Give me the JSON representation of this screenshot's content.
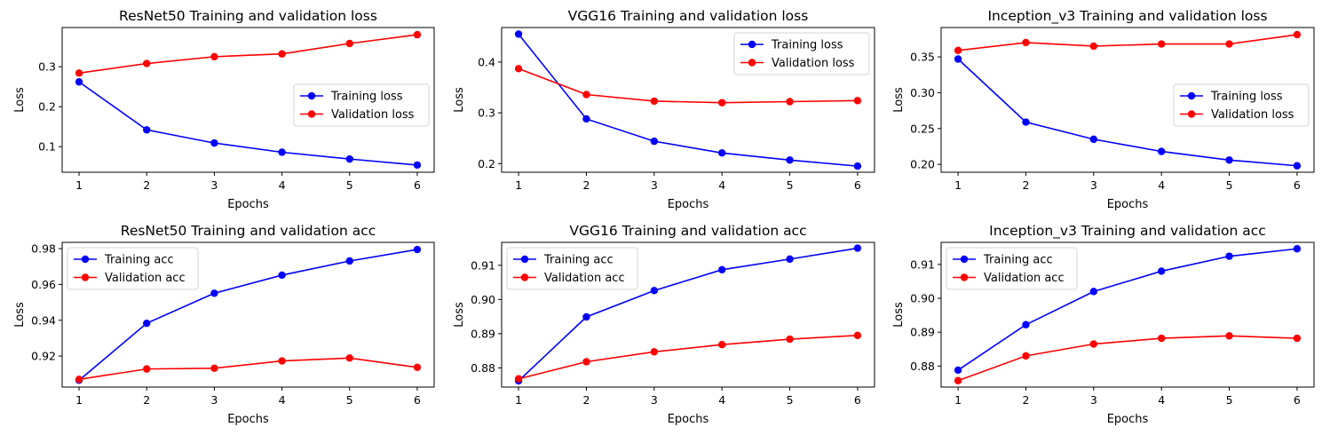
{
  "figure": {
    "colors": {
      "training": "#0000ff",
      "validation": "#ff0000",
      "axes": "#000000",
      "legend_border": "#d6d6d6"
    }
  },
  "chart_data": [
    {
      "type": "line",
      "title": "ResNet50 Training and validation loss",
      "xlabel": "Epochs",
      "ylabel": "Loss",
      "x": [
        1,
        2,
        3,
        4,
        5,
        6
      ],
      "xticks": [
        "1",
        "2",
        "3",
        "4",
        "5",
        "6"
      ],
      "xlim": [
        0.75,
        6.25
      ],
      "ylim": [
        0.036,
        0.398
      ],
      "yticks": [
        0.1,
        0.2,
        0.3
      ],
      "ytick_labels": [
        "0.1",
        "0.2",
        "0.3"
      ],
      "grid": false,
      "legend": "center-right",
      "series": [
        {
          "name": "Training loss",
          "color": "#0000ff",
          "values": [
            0.262,
            0.142,
            0.109,
            0.086,
            0.069,
            0.054
          ]
        },
        {
          "name": "Validation loss",
          "color": "#ff0000",
          "values": [
            0.284,
            0.308,
            0.325,
            0.332,
            0.358,
            0.38
          ]
        }
      ]
    },
    {
      "type": "line",
      "title": "VGG16 Training and validation loss",
      "xlabel": "Epochs",
      "ylabel": "Loss",
      "x": [
        1,
        2,
        3,
        4,
        5,
        6
      ],
      "xticks": [
        "1",
        "2",
        "3",
        "4",
        "5",
        "6"
      ],
      "xlim": [
        0.75,
        6.25
      ],
      "ylim": [
        0.183,
        0.468
      ],
      "yticks": [
        0.2,
        0.3,
        0.4
      ],
      "ytick_labels": [
        "0.2",
        "0.3",
        "0.4"
      ],
      "grid": false,
      "legend": "upper-right",
      "series": [
        {
          "name": "Training loss",
          "color": "#0000ff",
          "values": [
            0.455,
            0.288,
            0.244,
            0.221,
            0.207,
            0.195
          ]
        },
        {
          "name": "Validation loss",
          "color": "#ff0000",
          "values": [
            0.387,
            0.336,
            0.323,
            0.32,
            0.322,
            0.324
          ]
        }
      ]
    },
    {
      "type": "line",
      "title": "Inception_v3 Training and validation loss",
      "xlabel": "Epochs",
      "ylabel": "Loss",
      "x": [
        1,
        2,
        3,
        4,
        5,
        6
      ],
      "xticks": [
        "1",
        "2",
        "3",
        "4",
        "5",
        "6"
      ],
      "xlim": [
        0.75,
        6.25
      ],
      "ylim": [
        0.189,
        0.391
      ],
      "yticks": [
        0.2,
        0.25,
        0.3,
        0.35
      ],
      "ytick_labels": [
        "0.20",
        "0.25",
        "0.30",
        "0.35"
      ],
      "grid": false,
      "legend": "center-right",
      "series": [
        {
          "name": "Training loss",
          "color": "#0000ff",
          "values": [
            0.347,
            0.259,
            0.235,
            0.218,
            0.206,
            0.198
          ]
        },
        {
          "name": "Validation loss",
          "color": "#ff0000",
          "values": [
            0.359,
            0.37,
            0.365,
            0.368,
            0.368,
            0.381
          ]
        }
      ]
    },
    {
      "type": "line",
      "title": "ResNet50 Training and validation acc",
      "xlabel": "Epochs",
      "ylabel": "Loss",
      "x": [
        1,
        2,
        3,
        4,
        5,
        6
      ],
      "xticks": [
        "1",
        "2",
        "3",
        "4",
        "5",
        "6"
      ],
      "xlim": [
        0.75,
        6.25
      ],
      "ylim": [
        0.9027,
        0.9835
      ],
      "yticks": [
        0.92,
        0.94,
        0.96,
        0.98
      ],
      "ytick_labels": [
        "0.92",
        "0.94",
        "0.96",
        "0.98"
      ],
      "grid": false,
      "legend": "upper-left",
      "series": [
        {
          "name": "Training acc",
          "color": "#0000ff",
          "values": [
            0.9065,
            0.9383,
            0.9551,
            0.9652,
            0.9731,
            0.9795
          ]
        },
        {
          "name": "Validation acc",
          "color": "#ff0000",
          "values": [
            0.907,
            0.9128,
            0.9132,
            0.9173,
            0.9189,
            0.9137
          ]
        }
      ]
    },
    {
      "type": "line",
      "title": "VGG16 Training and validation acc",
      "xlabel": "Epochs",
      "ylabel": "Loss",
      "x": [
        1,
        2,
        3,
        4,
        5,
        6
      ],
      "xticks": [
        "1",
        "2",
        "3",
        "4",
        "5",
        "6"
      ],
      "xlim": [
        0.75,
        6.25
      ],
      "ylim": [
        0.8744,
        0.9167
      ],
      "yticks": [
        0.88,
        0.89,
        0.9,
        0.91
      ],
      "ytick_labels": [
        "0.88",
        "0.89",
        "0.90",
        "0.91"
      ],
      "grid": false,
      "legend": "upper-left",
      "series": [
        {
          "name": "Training acc",
          "color": "#0000ff",
          "values": [
            0.8762,
            0.8949,
            0.9026,
            0.9087,
            0.9118,
            0.915
          ]
        },
        {
          "name": "Validation acc",
          "color": "#ff0000",
          "values": [
            0.8768,
            0.8818,
            0.8847,
            0.8868,
            0.8884,
            0.8895
          ]
        }
      ]
    },
    {
      "type": "line",
      "title": "Inception_v3 Training and validation acc",
      "xlabel": "Epochs",
      "ylabel": "Loss",
      "x": [
        1,
        2,
        3,
        4,
        5,
        6
      ],
      "xticks": [
        "1",
        "2",
        "3",
        "4",
        "5",
        "6"
      ],
      "xlim": [
        0.75,
        6.25
      ],
      "ylim": [
        0.8738,
        0.9165
      ],
      "yticks": [
        0.88,
        0.89,
        0.9,
        0.91
      ],
      "ytick_labels": [
        "0.88",
        "0.89",
        "0.90",
        "0.91"
      ],
      "grid": false,
      "legend": "upper-left",
      "series": [
        {
          "name": "Training acc",
          "color": "#0000ff",
          "values": [
            0.8788,
            0.8922,
            0.902,
            0.908,
            0.9124,
            0.9146
          ]
        },
        {
          "name": "Validation acc",
          "color": "#ff0000",
          "values": [
            0.8757,
            0.883,
            0.8865,
            0.8882,
            0.8889,
            0.8882
          ]
        }
      ]
    }
  ]
}
